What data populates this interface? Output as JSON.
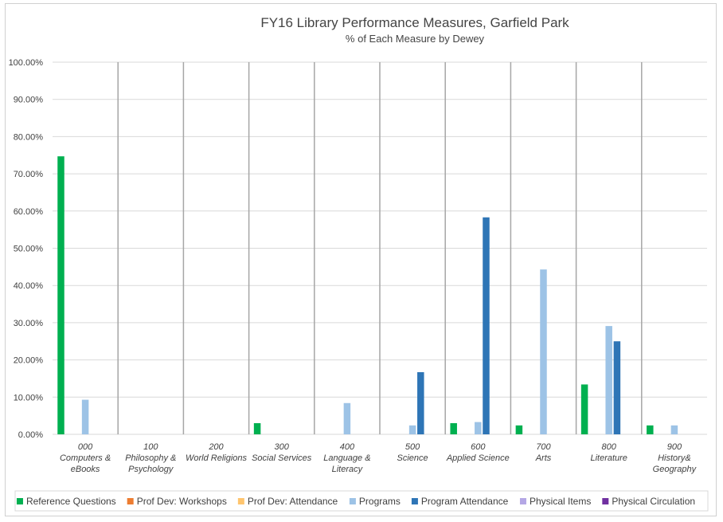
{
  "chart_data": {
    "type": "bar",
    "title": "FY16 Library Performance Measures, Garfield Park",
    "subtitle": "% of Each Measure by Dewey",
    "xlabel": "",
    "ylabel": "",
    "ylim": [
      0,
      100
    ],
    "y_ticks": [
      "0.00%",
      "10.00%",
      "20.00%",
      "30.00%",
      "40.00%",
      "50.00%",
      "60.00%",
      "70.00%",
      "80.00%",
      "90.00%",
      "100.00%"
    ],
    "categories": [
      [
        "000",
        "Computers &",
        "eBooks"
      ],
      [
        "100",
        "Philosophy &",
        "Psychology"
      ],
      [
        "200",
        "World Religions"
      ],
      [
        "300",
        "Social Services"
      ],
      [
        "400",
        "Language &",
        "Literacy"
      ],
      [
        "500",
        "Science"
      ],
      [
        "600",
        "Applied Science"
      ],
      [
        "700",
        "Arts"
      ],
      [
        "800",
        "Literature"
      ],
      [
        "900",
        "History&",
        "Geography"
      ]
    ],
    "series": [
      {
        "name": "Reference Questions",
        "color": "#00b050",
        "values": [
          74.7,
          0,
          0,
          3.0,
          0,
          0,
          3.0,
          2.4,
          13.4,
          2.4
        ]
      },
      {
        "name": "Prof Dev: Workshops",
        "color": "#ed7d31",
        "values": [
          0,
          0,
          0,
          0,
          0,
          0,
          0,
          0,
          0,
          0
        ]
      },
      {
        "name": "Prof Dev: Attendance",
        "color": "#ffc56e",
        "values": [
          0,
          0,
          0,
          0,
          0,
          0,
          0,
          0,
          0,
          0
        ]
      },
      {
        "name": "Programs",
        "color": "#9dc3e6",
        "values": [
          9.3,
          0,
          0,
          0,
          8.4,
          2.4,
          3.3,
          44.3,
          29.1,
          2.4
        ]
      },
      {
        "name": "Program Attendance",
        "color": "#2e75b6",
        "values": [
          0,
          0,
          0,
          0,
          0,
          16.7,
          58.3,
          0,
          25.0,
          0
        ]
      },
      {
        "name": "Physical Items",
        "color": "#b4a7e5",
        "values": [
          0,
          0,
          0,
          0,
          0,
          0,
          0,
          0,
          0,
          0
        ]
      },
      {
        "name": "Physical Circulation",
        "color": "#7030a0",
        "values": [
          0,
          0,
          0,
          0,
          0,
          0,
          0,
          0,
          0,
          0
        ]
      }
    ],
    "grid": true,
    "legend": "bottom"
  }
}
